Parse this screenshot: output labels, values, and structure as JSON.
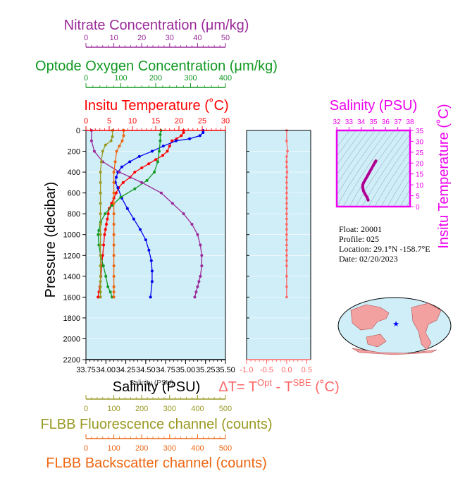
{
  "colors": {
    "panel_bg": "#cfeef8",
    "temperature": "#ff0000",
    "salinity": "#0000ee",
    "oxygen": "#119922",
    "nitrate": "#9a2a9a",
    "fluorescence": "#999922",
    "backscatter": "#ee6611",
    "delta_t": "#ff6666",
    "ts": "#ee00ee"
  },
  "axes": {
    "nitrate": {
      "title": "Nitrate Concentration (μm/kg)",
      "ticks": [
        "0",
        "10",
        "20",
        "30",
        "40",
        "50"
      ]
    },
    "oxygen": {
      "title": "Optode Oxygen Concentration (μm/kg)",
      "ticks": [
        "0",
        "100",
        "200",
        "300",
        "400"
      ]
    },
    "temperature": {
      "title": "Insitu Temperature (˚C)",
      "ticks": [
        "0",
        "5",
        "10",
        "15",
        "20",
        "25",
        "30"
      ]
    },
    "pressure": {
      "title": "Pressure (decibar)",
      "ticks": [
        "0",
        "200",
        "400",
        "600",
        "800",
        "1000",
        "1200",
        "1400",
        "1600",
        "1800",
        "2000",
        "2200"
      ]
    },
    "salinity": {
      "title": "Salinity (PSU)",
      "ticks": [
        "33.75",
        "34.00",
        "34.25",
        "34.50",
        "34.75",
        "35.00",
        "35.25",
        "35.50"
      ]
    },
    "fluorescence": {
      "title": "FLBB Fluorescence channel (counts)",
      "ticks": [
        "0",
        "100",
        "200",
        "300",
        "400",
        "500"
      ]
    },
    "backscatter": {
      "title": "FLBB Backscatter channel (counts)",
      "ticks": [
        "0",
        "100",
        "200",
        "300",
        "400",
        "500"
      ]
    },
    "delta_t": {
      "title_prefix": "ΔT= T",
      "sup1": "Opt",
      "mid": " - T",
      "sup2": "SBE",
      "suffix": " (˚C)",
      "ticks": [
        "-1.0",
        "-0.5",
        "0.0",
        "0.5"
      ]
    },
    "ts_salinity": {
      "title": "Salinity (PSU)",
      "ticks": [
        "32",
        "33",
        "34",
        "35",
        "36",
        "37",
        "38"
      ]
    },
    "ts_temperature": {
      "title": "Insitu Temperature (˚C)",
      "ticks": [
        "0",
        "5",
        "10",
        "15",
        "20",
        "25",
        "30",
        "35"
      ]
    }
  },
  "overlap_label": "Salinity (PSU)",
  "info": {
    "float": "Float:  20001",
    "profile": "Profile:  025",
    "location": "Location:  29.1°N  -158.7°E",
    "date": "Date:  02/20/2023"
  },
  "chart_data": [
    {
      "type": "line",
      "title": "",
      "ylabel": "Pressure (decibar)",
      "ylim": [
        2200,
        0
      ],
      "series": [
        {
          "name": "Insitu Temperature (˚C)",
          "xlim": [
            0,
            30
          ],
          "x": [
            21,
            21,
            20.5,
            19.5,
            18.5,
            18,
            17.5,
            16.5,
            15,
            13.5,
            12,
            10.5,
            9.5,
            8,
            7,
            6.5,
            6,
            5.5,
            5,
            4.8,
            4.6,
            4.4,
            4.2,
            4,
            3.8,
            3.6,
            3.4,
            3.2,
            3,
            2.8,
            2.6
          ],
          "y": [
            0,
            20,
            50,
            80,
            100,
            150,
            200,
            240,
            280,
            320,
            360,
            400,
            450,
            500,
            550,
            600,
            650,
            700,
            750,
            800,
            850,
            900,
            950,
            1000,
            1100,
            1200,
            1300,
            1400,
            1500,
            1550,
            1600
          ]
        },
        {
          "name": "Salinity (PSU)",
          "xlim": [
            33.75,
            35.5
          ],
          "x": [
            35.22,
            35.22,
            35.18,
            35.05,
            34.88,
            34.72,
            34.58,
            34.42,
            34.3,
            34.2,
            34.15,
            34.13,
            34.12,
            34.15,
            34.2,
            34.27,
            34.35,
            34.43,
            34.5,
            34.54,
            34.57,
            34.58,
            34.58,
            34.56
          ],
          "y": [
            0,
            20,
            50,
            80,
            100,
            150,
            200,
            250,
            300,
            350,
            400,
            450,
            500,
            550,
            650,
            750,
            850,
            950,
            1050,
            1150,
            1250,
            1350,
            1450,
            1600
          ]
        },
        {
          "name": "Optode Oxygen Concentration (μm/kg)",
          "xlim": [
            0,
            400
          ],
          "x": [
            215,
            213,
            213,
            210,
            206,
            196,
            175,
            140,
            100,
            75,
            55,
            42,
            37,
            35,
            37,
            42,
            50,
            57,
            63,
            70,
            75
          ],
          "y": [
            0,
            40,
            100,
            200,
            300,
            400,
            480,
            560,
            640,
            720,
            800,
            880,
            960,
            1000,
            1100,
            1200,
            1300,
            1400,
            1500,
            1550,
            1600
          ]
        },
        {
          "name": "Nitrate Concentration (μm/kg)",
          "xlim": [
            0,
            50
          ],
          "x": [
            2,
            2,
            3,
            6,
            12,
            20,
            27,
            31,
            35,
            38,
            40,
            41,
            41.5,
            41.5,
            41,
            40.5,
            40,
            39.5,
            39
          ],
          "y": [
            0,
            100,
            200,
            300,
            400,
            500,
            600,
            700,
            800,
            900,
            1000,
            1100,
            1200,
            1300,
            1400,
            1450,
            1500,
            1550,
            1600
          ]
        },
        {
          "name": "FLBB Fluorescence channel (counts)",
          "xlim": [
            0,
            500
          ],
          "x": [
            95,
            95,
            90,
            70,
            60,
            55,
            52,
            52,
            52,
            52,
            52,
            52,
            52,
            52,
            52,
            52,
            52,
            52,
            52,
            52,
            52
          ],
          "y": [
            0,
            60,
            100,
            140,
            200,
            300,
            400,
            500,
            600,
            700,
            800,
            900,
            1000,
            1100,
            1200,
            1300,
            1400,
            1450,
            1500,
            1550,
            1600
          ]
        },
        {
          "name": "FLBB Backscatter channel (counts)",
          "xlim": [
            0,
            500
          ],
          "x": [
            135,
            135,
            130,
            120,
            110,
            105,
            100,
            100,
            100,
            100,
            100,
            100,
            100,
            100,
            100,
            100,
            100,
            100,
            100,
            100
          ],
          "y": [
            0,
            50,
            100,
            150,
            200,
            300,
            400,
            500,
            600,
            700,
            800,
            900,
            1000,
            1100,
            1200,
            1300,
            1400,
            1500,
            1550,
            1600
          ]
        }
      ]
    },
    {
      "type": "scatter",
      "title": "",
      "xlabel": "ΔT= T^Opt - T^SBE (˚C)",
      "xlim": [
        -1.0,
        0.6
      ],
      "ylim": [
        2200,
        0
      ],
      "series": [
        {
          "name": "ΔT",
          "x": [
            0,
            0,
            0.02,
            0,
            0,
            0,
            0.01,
            0,
            0,
            0,
            0,
            0,
            0,
            0,
            0,
            0,
            0,
            0,
            0,
            0,
            0,
            0,
            0,
            0,
            0,
            0,
            0,
            0
          ],
          "y": [
            0,
            100,
            200,
            250,
            300,
            350,
            400,
            450,
            500,
            550,
            600,
            650,
            700,
            750,
            800,
            850,
            900,
            950,
            1000,
            1050,
            1100,
            1150,
            1200,
            1250,
            1300,
            1400,
            1500,
            1600
          ]
        }
      ]
    },
    {
      "type": "line",
      "title": "",
      "xlabel": "Salinity (PSU)",
      "ylabel": "Insitu Temperature (˚C)",
      "xlim": [
        32,
        38
      ],
      "ylim": [
        0,
        35
      ],
      "series": [
        {
          "name": "T-S",
          "x": [
            34.57,
            34.5,
            34.4,
            34.3,
            34.2,
            34.15,
            34.12,
            34.13,
            34.2,
            34.3,
            34.4,
            34.5,
            34.6,
            34.7,
            34.8,
            34.9,
            35.0,
            35.1,
            35.15,
            35.2
          ],
          "y": [
            3,
            4,
            5,
            6,
            7,
            8,
            9,
            10,
            11,
            12,
            13,
            14,
            15,
            16,
            17,
            18,
            19,
            20,
            20.5,
            21
          ]
        }
      ]
    }
  ]
}
